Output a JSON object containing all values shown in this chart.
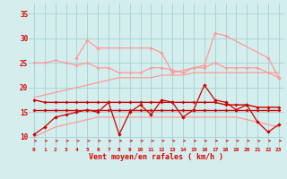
{
  "x": [
    0,
    1,
    2,
    3,
    4,
    5,
    6,
    7,
    8,
    9,
    10,
    11,
    12,
    13,
    14,
    15,
    16,
    17,
    18,
    19,
    20,
    21,
    22,
    23
  ],
  "line_rafales_max": [
    null,
    null,
    null,
    null,
    26,
    29.5,
    28,
    null,
    null,
    null,
    null,
    28,
    27,
    23,
    null,
    null,
    24.5,
    31,
    30.5,
    null,
    null,
    null,
    26,
    22
  ],
  "line_rafales_pink": [
    25,
    25,
    25.5,
    25,
    24.5,
    25,
    24,
    24,
    23,
    23,
    23,
    24,
    24,
    23.5,
    23,
    24,
    24,
    25,
    24,
    24,
    24,
    24,
    23,
    22
  ],
  "line_trend_upper": [
    18,
    18.5,
    19,
    19.5,
    20,
    20.5,
    21,
    21.5,
    22,
    22,
    22,
    22,
    22.5,
    22.5,
    22.5,
    23,
    23,
    23,
    23,
    23,
    23,
    23,
    23,
    23
  ],
  "line_trend_lower": [
    10,
    11,
    12,
    12.5,
    13,
    13.5,
    14,
    14,
    14,
    14,
    14,
    14,
    14,
    14,
    14,
    14,
    14,
    14,
    14,
    14,
    13.5,
    13,
    12.5,
    12
  ],
  "line_moyen": [
    10.5,
    12,
    14,
    14.5,
    15,
    15.5,
    15,
    17,
    10.5,
    15,
    16.5,
    14.5,
    17.5,
    17,
    14,
    15.5,
    20.5,
    17.5,
    17,
    15.5,
    16.5,
    13,
    11,
    12.5
  ],
  "line_flat_red1": [
    17.5,
    17,
    17,
    17,
    17,
    17,
    17,
    17,
    17,
    17,
    17,
    17,
    17,
    17,
    17,
    17,
    17,
    17,
    16.5,
    16.5,
    16.5,
    16,
    16,
    16
  ],
  "line_flat_red2": [
    15.5,
    15.5,
    15.5,
    15.5,
    15.5,
    15.5,
    15.5,
    15.5,
    15.5,
    15.5,
    15.5,
    15.5,
    15.5,
    15.5,
    15.5,
    15.5,
    15.5,
    15.5,
    15.5,
    15.5,
    15.5,
    15.5,
    15.5,
    15.5
  ],
  "background_color": "#d4eeee",
  "grid_color": "#aad4d4",
  "axis_color": "#dd0000",
  "dark_red": "#cc0000",
  "light_pink": "#ff9999",
  "ylabel_ticks": [
    10,
    15,
    20,
    25,
    30,
    35
  ],
  "xlabel": "Vent moyen/en rafales ( km/h )",
  "ylim": [
    8.0,
    37.0
  ],
  "xlim": [
    -0.5,
    23.5
  ]
}
